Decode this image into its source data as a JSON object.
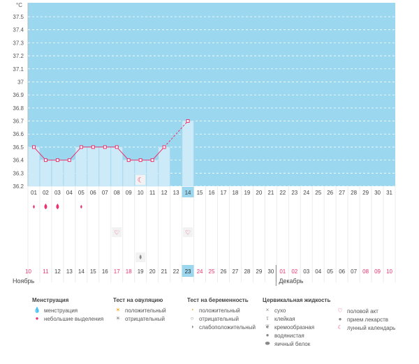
{
  "chart_data": {
    "type": "line",
    "y_unit": "°C",
    "y_ticks": [
      "37.5",
      "37.4",
      "37.3",
      "37.2",
      "37.1",
      "37",
      "36.9",
      "36.8",
      "36.7",
      "36.6",
      "36.5",
      "36.4",
      "36.3",
      "36.2"
    ],
    "ylim": [
      36.2,
      37.5
    ],
    "cycle_days": [
      "01",
      "02",
      "03",
      "04",
      "05",
      "06",
      "07",
      "08",
      "09",
      "10",
      "11",
      "12",
      "13",
      "14",
      "15",
      "16",
      "17",
      "18",
      "19",
      "20",
      "21",
      "22",
      "23",
      "24",
      "25",
      "26",
      "27",
      "28",
      "29",
      "30",
      "31"
    ],
    "current_day": "14",
    "temperature": {
      "points": [
        {
          "day": 1,
          "value": 36.5
        },
        {
          "day": 2,
          "value": 36.4
        },
        {
          "day": 3,
          "value": 36.4
        },
        {
          "day": 4,
          "value": 36.4
        },
        {
          "day": 5,
          "value": 36.5
        },
        {
          "day": 6,
          "value": 36.5
        },
        {
          "day": 7,
          "value": 36.5
        },
        {
          "day": 8,
          "value": 36.5
        },
        {
          "day": 9,
          "value": 36.4
        },
        {
          "day": 10,
          "value": 36.4
        },
        {
          "day": 11,
          "value": 36.4
        },
        {
          "day": 12,
          "value": 36.5
        },
        {
          "day": 14,
          "value": 36.7
        }
      ],
      "bar_color": "#cdeaf8",
      "line_color": "#e8336d"
    },
    "markers": [
      {
        "day": 1,
        "row": "menstruation",
        "icon": "small-drop-icon"
      },
      {
        "day": 2,
        "row": "menstruation",
        "icon": "drop-icon"
      },
      {
        "day": 3,
        "row": "menstruation",
        "icon": "drop-icon"
      },
      {
        "day": 5,
        "row": "menstruation",
        "icon": "small-drop-icon"
      },
      {
        "day": 8,
        "row": "sex",
        "icon": "heart-icon"
      },
      {
        "day": 14,
        "row": "sex",
        "icon": "heart-icon"
      },
      {
        "day": 10,
        "row": "fluid",
        "icon": "watery-icon"
      },
      {
        "day": 10,
        "row": "moon",
        "icon": "moon-icon"
      }
    ],
    "date_row": {
      "labels": [
        "10",
        "11",
        "12",
        "13",
        "14",
        "15",
        "16",
        "17",
        "18",
        "19",
        "20",
        "21",
        "22",
        "23",
        "24",
        "25",
        "26",
        "27",
        "28",
        "29",
        "30",
        "01",
        "02",
        "03",
        "04",
        "05",
        "06",
        "07",
        "08",
        "09",
        "10"
      ],
      "red": [
        "10",
        "11",
        "17",
        "18",
        "24",
        "25",
        "01",
        "02",
        "08",
        "09"
      ],
      "current": "23",
      "month_1": "Ноябрь",
      "month_2": "Декабрь"
    },
    "colors": {
      "background": "#9bd8ef",
      "red_text": "#e8336d",
      "highlight": "#9bd8ef"
    }
  },
  "legend": {
    "menstruation": {
      "title": "Менструация",
      "items": [
        {
          "label": "менструация",
          "icon": "drop-icon"
        },
        {
          "label": "небольшие выделения",
          "icon": "small-drop-icon"
        }
      ]
    },
    "ovulation": {
      "title": "Тест на овуляцию",
      "items": [
        {
          "label": "положительный",
          "icon": "sun-positive-icon"
        },
        {
          "label": "отрицательный",
          "icon": "sun-negative-icon"
        }
      ]
    },
    "pregnancy": {
      "title": "Тест на беременность",
      "items": [
        {
          "label": "положительный",
          "icon": "pregnancy-positive-icon"
        },
        {
          "label": "отрицательный",
          "icon": "pregnancy-negative-icon"
        },
        {
          "label": "слабоположительный",
          "icon": "pregnancy-weak-icon"
        }
      ]
    },
    "cervical": {
      "title": "Цервикальная жидкость",
      "items": [
        {
          "label": "сухо",
          "icon": "dry-icon"
        },
        {
          "label": "клейкая",
          "icon": "sticky-icon"
        },
        {
          "label": "кремообразная",
          "icon": "creamy-icon"
        },
        {
          "label": "водянистая",
          "icon": "watery-icon"
        },
        {
          "label": "яичный белок",
          "icon": "egg-white-icon"
        }
      ]
    },
    "other": {
      "items": [
        {
          "label": "половой акт",
          "icon": "heart-icon"
        },
        {
          "label": "прием лекарств",
          "icon": "pill-icon"
        },
        {
          "label": "лунный календарь",
          "icon": "moon-icon"
        }
      ]
    }
  }
}
